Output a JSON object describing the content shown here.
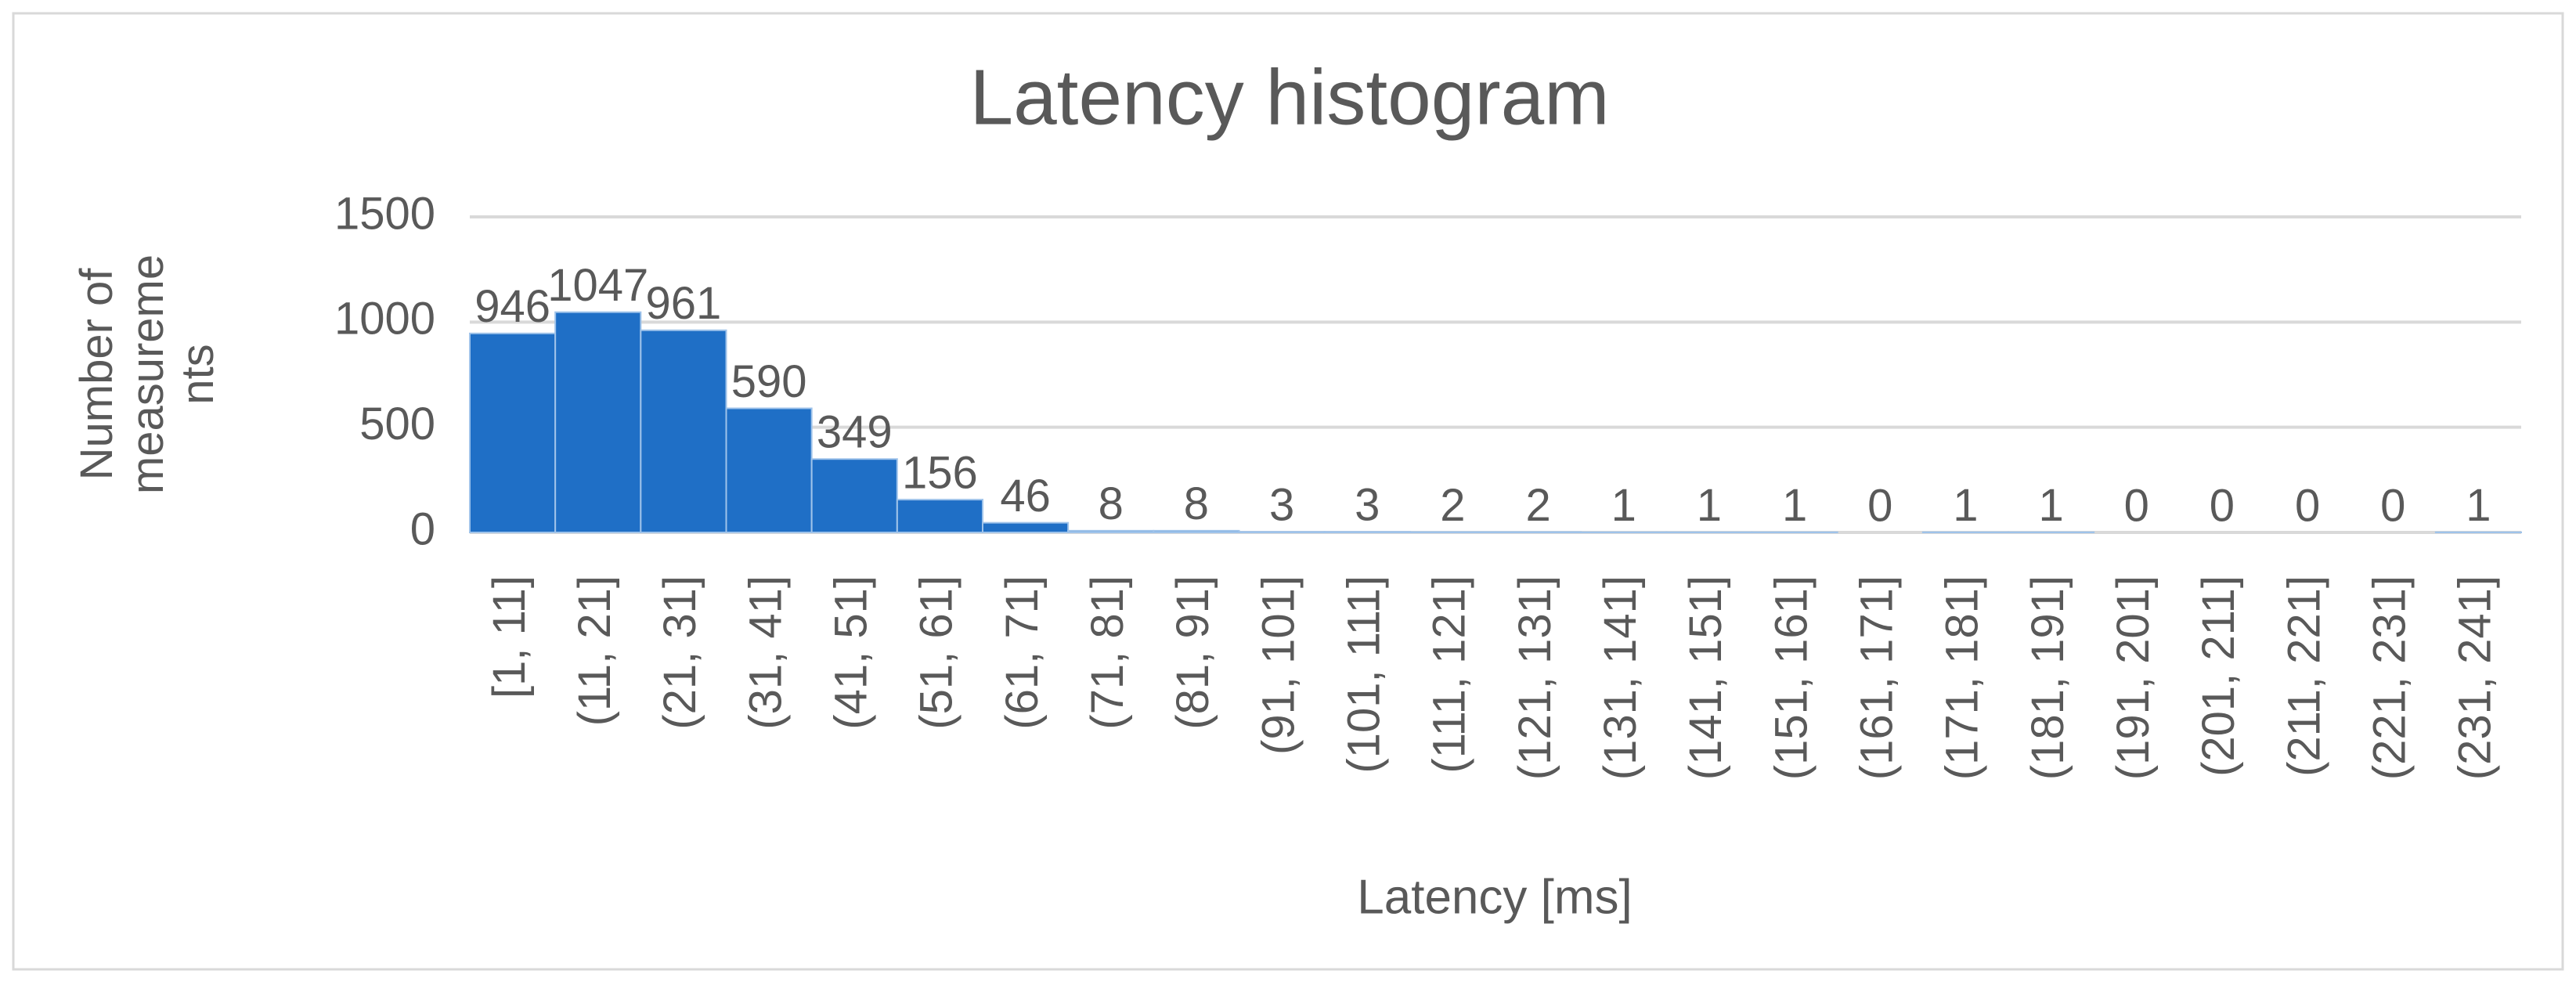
{
  "chart_data": {
    "type": "bar",
    "title": "Latency histogram",
    "x_label": "Latency [ms]",
    "y_label": "Number of measurements",
    "categories": [
      "[1, 11]",
      "(11, 21]",
      "(21, 31]",
      "(31, 41]",
      "(41, 51]",
      "(51, 61]",
      "(61, 71]",
      "(71, 81]",
      "(81, 91]",
      "(91, 101]",
      "(101, 111]",
      "(111, 121]",
      "(121, 131]",
      "(131, 141]",
      "(141, 151]",
      "(151, 161]",
      "(161, 171]",
      "(171, 181]",
      "(181, 191]",
      "(191, 201]",
      "(201, 211]",
      "(211, 221]",
      "(221, 231]",
      "(231, 241]"
    ],
    "values": [
      946,
      1047,
      961,
      590,
      349,
      156,
      46,
      8,
      8,
      3,
      3,
      2,
      2,
      1,
      1,
      1,
      0,
      1,
      1,
      0,
      0,
      0,
      0,
      1
    ],
    "color": "#1f6fc6",
    "ylim": [
      0,
      1500
    ],
    "yticks": [
      0,
      500,
      1000,
      1500
    ],
    "grid": true
  }
}
